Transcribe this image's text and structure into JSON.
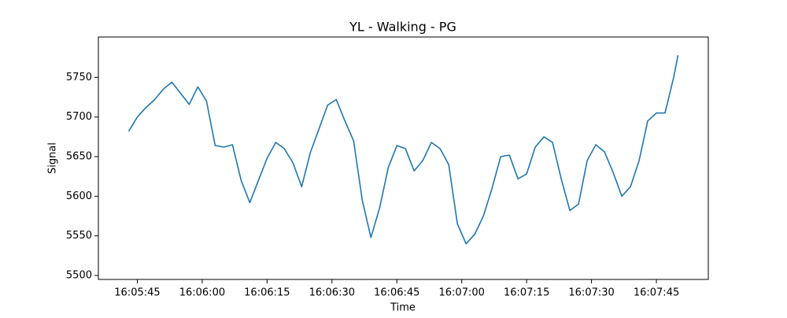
{
  "chart_data": {
    "type": "line",
    "title": "YL - Walking - PG",
    "xlabel": "Time",
    "ylabel": "Signal",
    "x": [
      "16:05:43",
      "16:05:45",
      "16:05:47",
      "16:05:49",
      "16:05:51",
      "16:05:53",
      "16:05:55",
      "16:05:57",
      "16:05:59",
      "16:06:01",
      "16:06:03",
      "16:06:05",
      "16:06:07",
      "16:06:09",
      "16:06:11",
      "16:06:13",
      "16:06:15",
      "16:06:17",
      "16:06:19",
      "16:06:21",
      "16:06:23",
      "16:06:25",
      "16:06:27",
      "16:06:29",
      "16:06:31",
      "16:06:33",
      "16:06:35",
      "16:06:37",
      "16:06:39",
      "16:06:41",
      "16:06:43",
      "16:06:45",
      "16:06:47",
      "16:06:49",
      "16:06:51",
      "16:06:53",
      "16:06:55",
      "16:06:57",
      "16:06:59",
      "16:07:01",
      "16:07:03",
      "16:07:05",
      "16:07:07",
      "16:07:09",
      "16:07:11",
      "16:07:13",
      "16:07:15",
      "16:07:17",
      "16:07:19",
      "16:07:21",
      "16:07:23",
      "16:07:25",
      "16:07:27",
      "16:07:29",
      "16:07:31",
      "16:07:33",
      "16:07:35",
      "16:07:37",
      "16:07:39",
      "16:07:41",
      "16:07:43",
      "16:07:45",
      "16:07:47",
      "16:07:49",
      "16:07:50"
    ],
    "series": [
      {
        "name": "Signal",
        "color": "#1f77b4",
        "values": [
          5682,
          5700,
          5712,
          5722,
          5735,
          5744,
          5730,
          5716,
          5738,
          5720,
          5664,
          5662,
          5665,
          5620,
          5592,
          5620,
          5648,
          5668,
          5660,
          5642,
          5612,
          5655,
          5685,
          5715,
          5722,
          5695,
          5670,
          5595,
          5548,
          5585,
          5636,
          5664,
          5660,
          5632,
          5645,
          5668,
          5660,
          5640,
          5565,
          5540,
          5552,
          5575,
          5610,
          5650,
          5652,
          5622,
          5628,
          5662,
          5675,
          5668,
          5622,
          5582,
          5590,
          5645,
          5665,
          5656,
          5630,
          5600,
          5612,
          5645,
          5695,
          5705,
          5705,
          5750,
          5778
        ]
      }
    ],
    "xlim": [
      "16:05:36",
      "16:07:57"
    ],
    "xticks": [
      "16:05:45",
      "16:06:00",
      "16:06:15",
      "16:06:30",
      "16:06:45",
      "16:07:00",
      "16:07:15",
      "16:07:30",
      "16:07:45"
    ],
    "ylim": [
      5495,
      5801
    ],
    "yticks": [
      5500,
      5550,
      5600,
      5650,
      5700,
      5750
    ]
  }
}
